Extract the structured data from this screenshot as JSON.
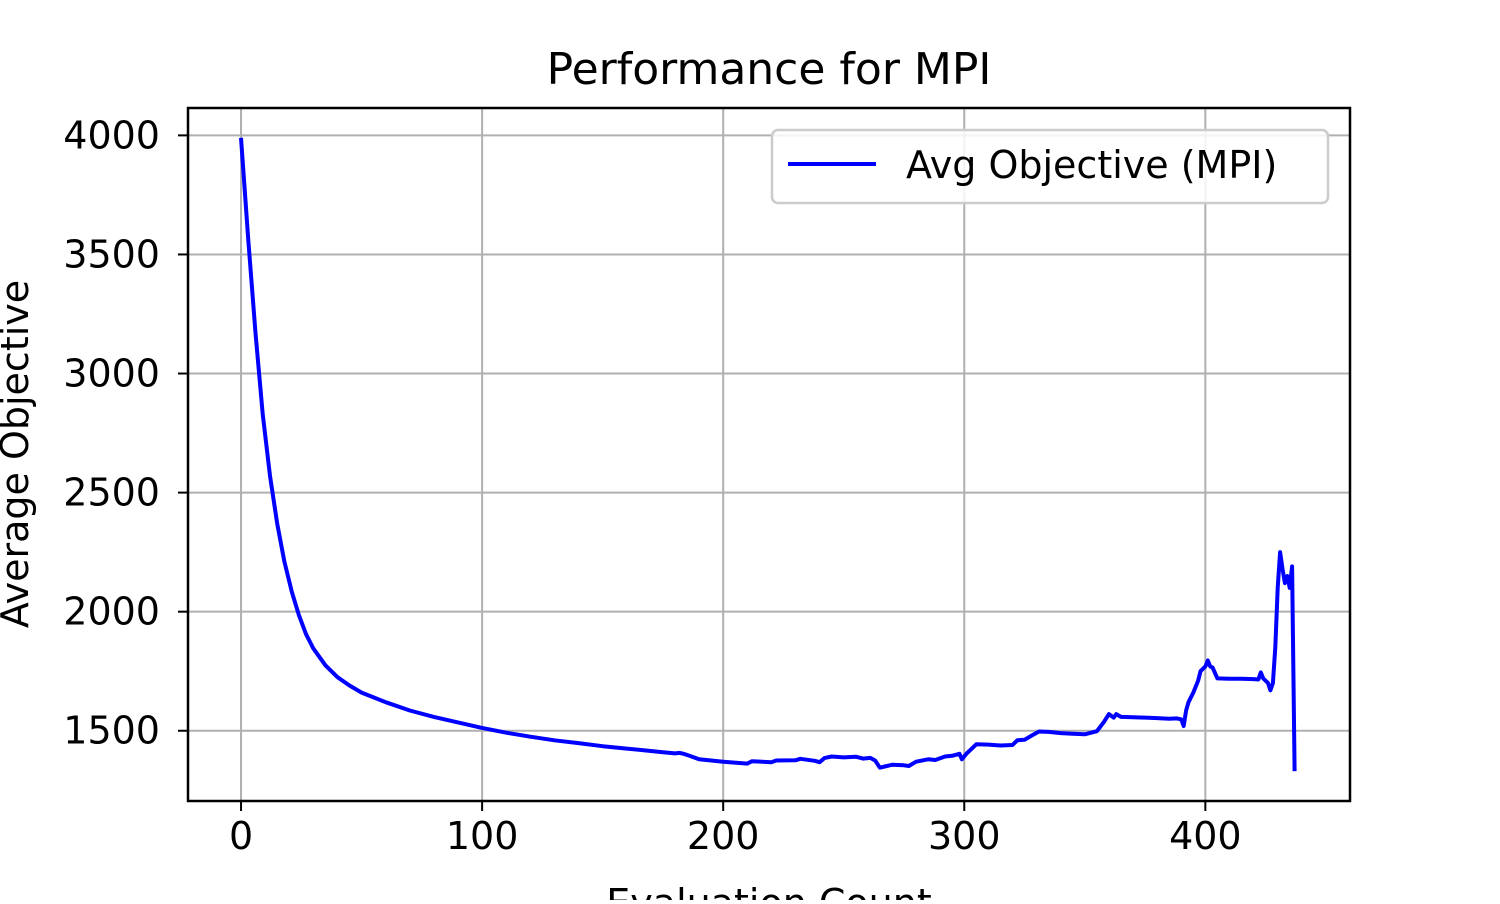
{
  "chart_data": {
    "type": "line",
    "title": "Performance for MPI",
    "xlabel": "Evaluation Count",
    "ylabel": "Average Objective",
    "xlim": [
      -22,
      460
    ],
    "ylim": [
      1205,
      4115
    ],
    "x_ticks": [
      0,
      100,
      200,
      300,
      400
    ],
    "y_ticks": [
      1500,
      2000,
      2500,
      3000,
      3500,
      4000
    ],
    "grid": true,
    "legend_position": "top-right",
    "series": [
      {
        "name": "Avg Objective (MPI)",
        "color": "#0000ff",
        "x": [
          0,
          3,
          6,
          9,
          12,
          15,
          18,
          21,
          24,
          27,
          30,
          35,
          40,
          45,
          50,
          55,
          60,
          70,
          80,
          90,
          100,
          110,
          120,
          130,
          140,
          150,
          160,
          170,
          175,
          180,
          182,
          184,
          186,
          190,
          200,
          210,
          212,
          220,
          222,
          230,
          232,
          238,
          240,
          242,
          245,
          250,
          255,
          258,
          261,
          263,
          265,
          267,
          270,
          275,
          277,
          280,
          285,
          288,
          292,
          295,
          298,
          299,
          301,
          305,
          310,
          315,
          320,
          322,
          325,
          328,
          331,
          335,
          340,
          345,
          350,
          355,
          358,
          360,
          362,
          363,
          365,
          370,
          375,
          380,
          385,
          388,
          390,
          391,
          392,
          393,
          395,
          397,
          398,
          400,
          401,
          402,
          403,
          405,
          410,
          415,
          420,
          422,
          423,
          424,
          425,
          426,
          427,
          428,
          429,
          430,
          431,
          432,
          433,
          434,
          435,
          436,
          437
        ],
        "y": [
          3990,
          3560,
          3170,
          2830,
          2570,
          2370,
          2210,
          2085,
          1985,
          1905,
          1845,
          1775,
          1725,
          1690,
          1660,
          1640,
          1620,
          1585,
          1558,
          1535,
          1512,
          1492,
          1475,
          1460,
          1448,
          1435,
          1425,
          1415,
          1410,
          1405,
          1407,
          1402,
          1395,
          1380,
          1370,
          1362,
          1372,
          1368,
          1375,
          1376,
          1382,
          1374,
          1368,
          1385,
          1392,
          1388,
          1391,
          1383,
          1386,
          1375,
          1345,
          1350,
          1357,
          1355,
          1352,
          1370,
          1380,
          1377,
          1392,
          1395,
          1403,
          1380,
          1405,
          1443,
          1442,
          1438,
          1440,
          1460,
          1462,
          1480,
          1497,
          1495,
          1490,
          1487,
          1485,
          1498,
          1538,
          1570,
          1555,
          1570,
          1558,
          1557,
          1555,
          1553,
          1550,
          1552,
          1548,
          1520,
          1585,
          1620,
          1660,
          1710,
          1750,
          1770,
          1795,
          1770,
          1765,
          1720,
          1718,
          1718,
          1717,
          1715,
          1745,
          1720,
          1710,
          1700,
          1670,
          1700,
          1850,
          2100,
          2250,
          2180,
          2120,
          2150,
          2100,
          2190,
          1330
        ]
      }
    ]
  }
}
